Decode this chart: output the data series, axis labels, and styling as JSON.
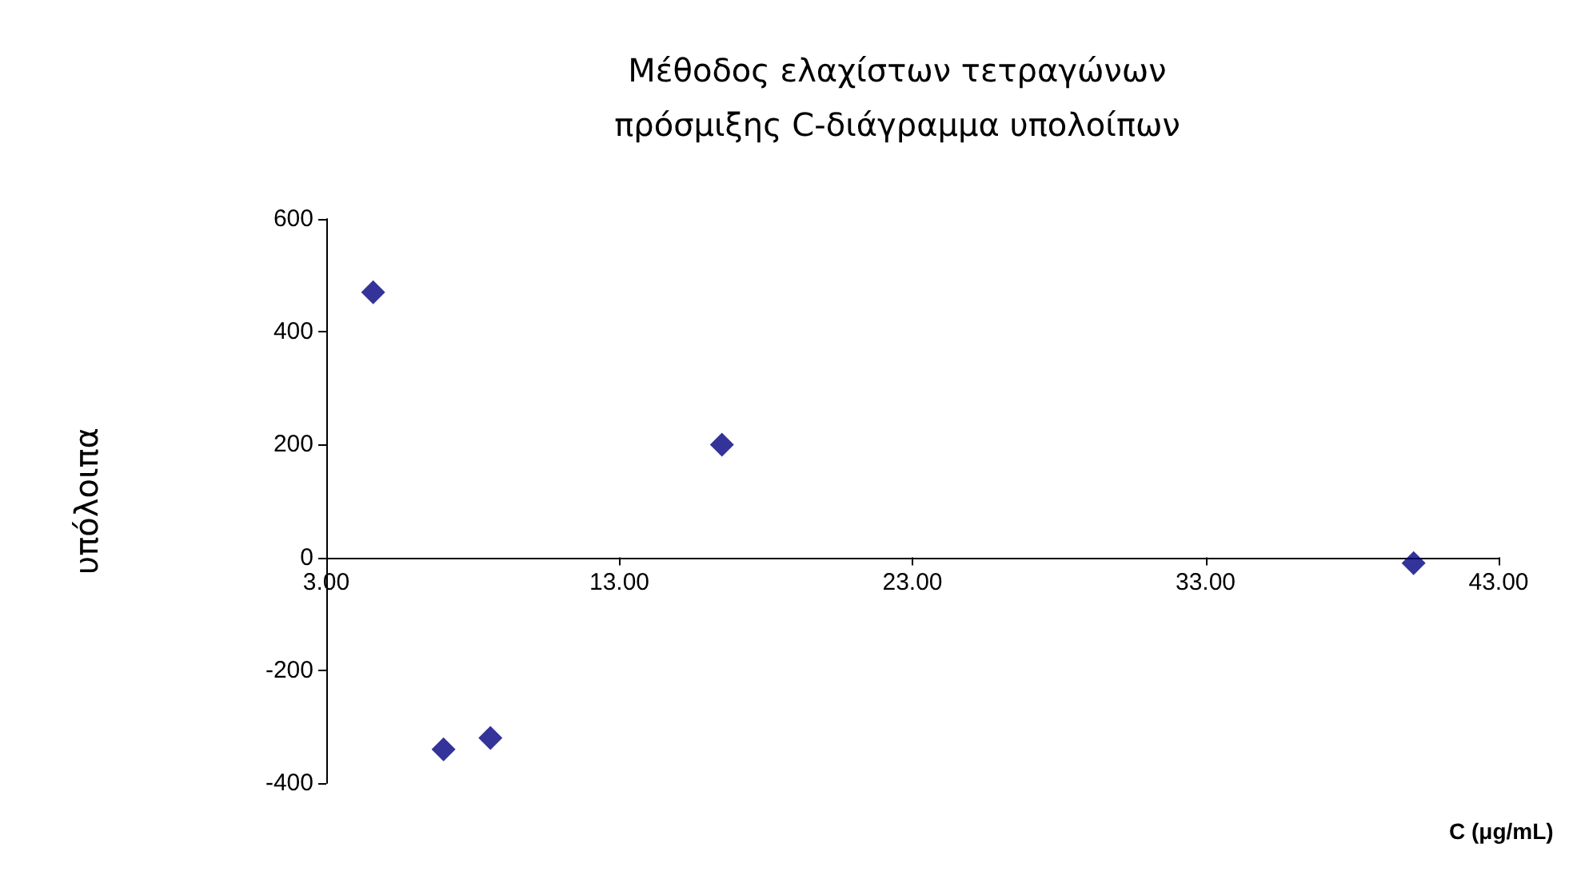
{
  "chart_data": {
    "type": "scatter",
    "title": "Μέθοδος ελαχίστων τετραγώνων\nπρόσμιξης C-διάγραμμα υπολοίπων",
    "xlabel": "C (μg/mL)",
    "ylabel": "υπόλοιπα",
    "x": [
      4.6,
      7.0,
      8.6,
      16.5,
      40.1
    ],
    "series": [
      {
        "color": "#000080",
        "values": [
          470,
          -340,
          -320,
          200,
          -10
        ]
      }
    ],
    "xlim": [
      3,
      43
    ],
    "xticks": [
      {
        "value": 3,
        "label": "3.00"
      },
      {
        "value": 13,
        "label": "13.00"
      },
      {
        "value": 23,
        "label": "23.00"
      },
      {
        "value": 33,
        "label": "33.00"
      },
      {
        "value": 43,
        "label": "43.00"
      }
    ],
    "ylim": [
      -400,
      600
    ],
    "yticks": [
      -400,
      -200,
      0,
      200,
      400,
      600
    ],
    "grid": false,
    "marker": "diamond"
  }
}
